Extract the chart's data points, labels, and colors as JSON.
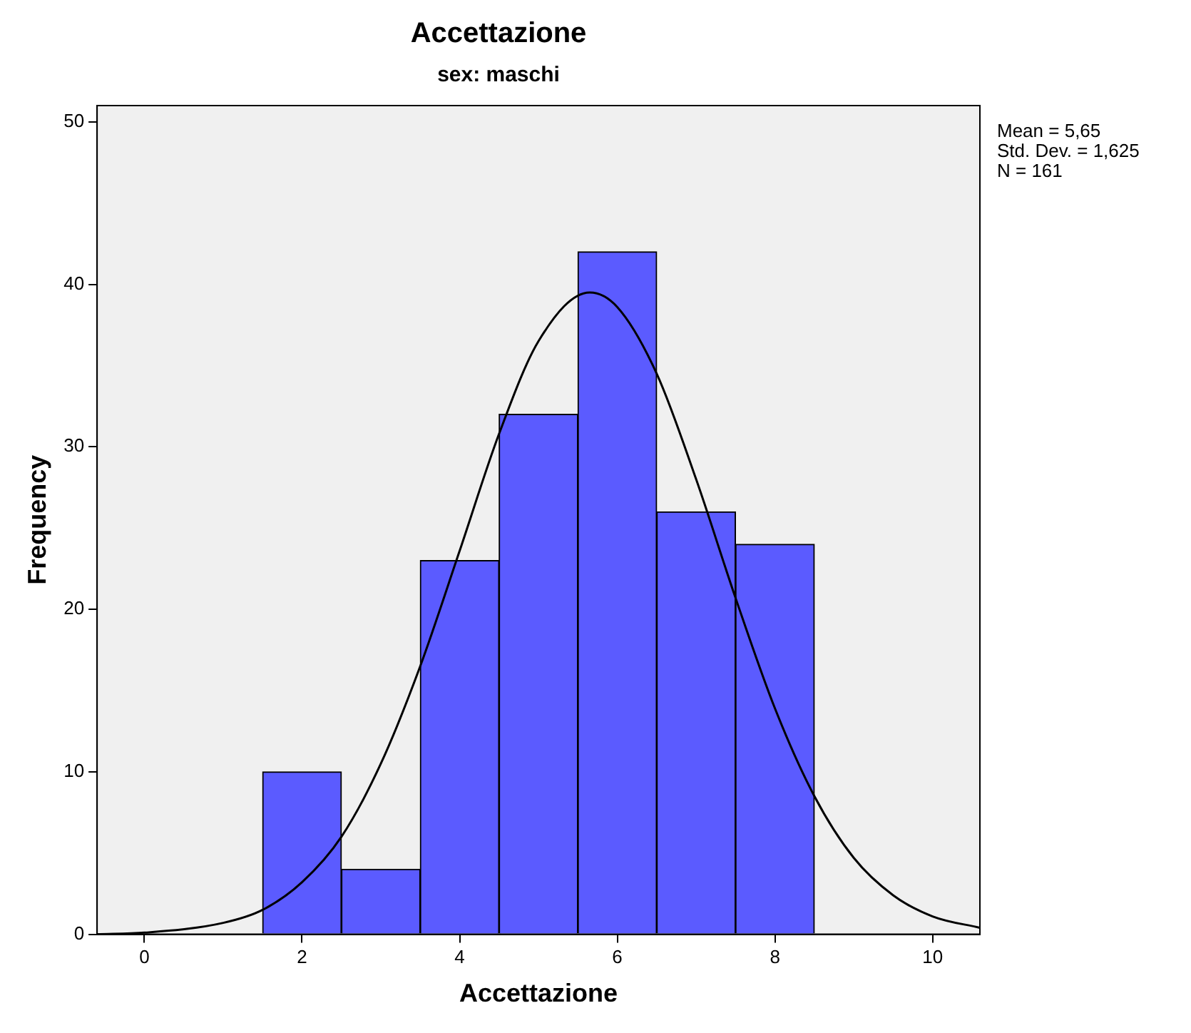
{
  "chart_data": {
    "type": "histogram",
    "title": "Accettazione",
    "subtitle": "sex: maschi",
    "xlabel": "Accettazione",
    "ylabel": "Frequency",
    "bins": [
      1.5,
      2.5,
      3.5,
      4.5,
      5.5,
      6.5,
      7.5,
      8.5
    ],
    "values": [
      10,
      4,
      23,
      32,
      42,
      26,
      24
    ],
    "color": "#5b5bff",
    "series": [
      {
        "type": "line",
        "color": "#000000",
        "x": [
          -0.6,
          0,
          1,
          1.5,
          2,
          2.5,
          3,
          3.5,
          4,
          4.5,
          5,
          5.65,
          6,
          6.5,
          7,
          7.5,
          8,
          8.5,
          9,
          9.5,
          10,
          10.6
        ],
        "values": [
          0.0,
          0.1,
          0.7,
          1.5,
          3.2,
          6.0,
          10.5,
          16.5,
          23.6,
          30.8,
          36.5,
          39.5,
          38.6,
          34.5,
          28.0,
          20.7,
          13.9,
          8.5,
          4.7,
          2.4,
          1.1,
          0.4
        ]
      }
    ],
    "marker": "none",
    "line_style": "solid",
    "xlim": [
      -0.6,
      10.6
    ],
    "xticks": [
      0,
      2,
      4,
      6,
      8,
      10
    ],
    "ylim": [
      0,
      51
    ],
    "yticks": [
      0,
      10,
      20,
      30,
      40,
      50
    ],
    "grid": false,
    "legend": false,
    "annotations": [
      "Mean = 5,65",
      "Std. Dev. = 1,625",
      "N = 161"
    ]
  }
}
